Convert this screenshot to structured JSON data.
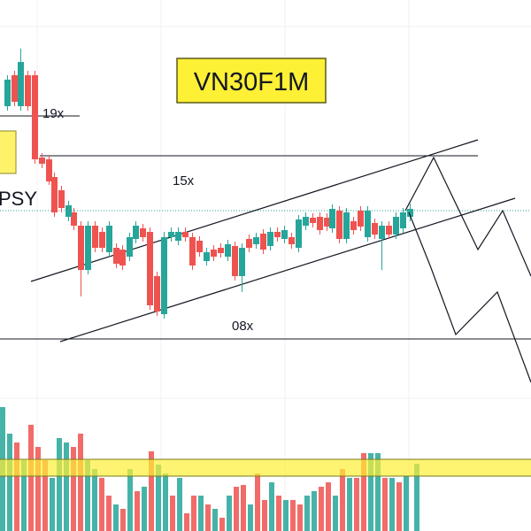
{
  "title": "VN30F1M",
  "levels": [
    "19x",
    "15x",
    "08x"
  ],
  "pattern_label": "PSY"
}
